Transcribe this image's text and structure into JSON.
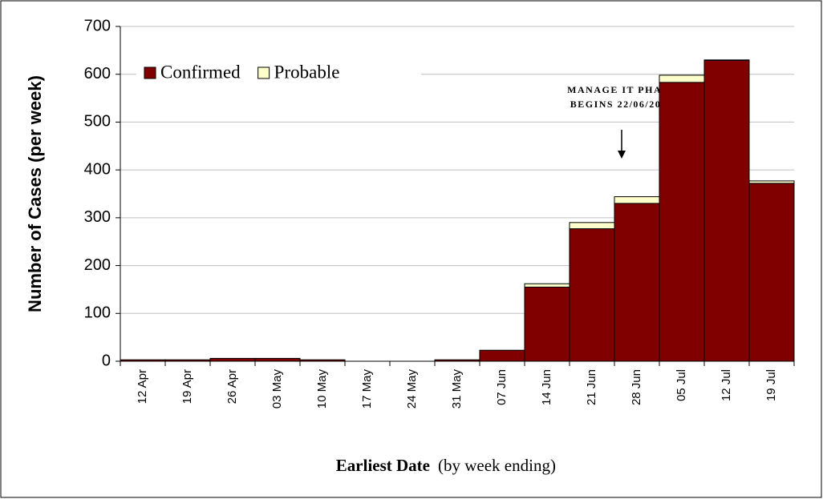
{
  "chart_data": {
    "type": "stacked_bar",
    "ylabel": "Number of Cases (per week)",
    "xlabel": "Earliest Date",
    "xlabel_note": "(by week ending)",
    "annotation": [
      "MANAGE IT PHASE",
      "BEGINS 22/06/2009"
    ],
    "categories": [
      "12 Apr",
      "19 Apr",
      "26 Apr",
      "03 May",
      "10 May",
      "17 May",
      "24 May",
      "31 May",
      "07 Jun",
      "14 Jun",
      "21 Jun",
      "28 Jun",
      "05 Jul",
      "12 Jul",
      "19 Jul"
    ],
    "series": [
      {
        "name": "Confirmed",
        "color": "#800000",
        "values": [
          3,
          3,
          6,
          6,
          3,
          0,
          0,
          3,
          23,
          155,
          277,
          330,
          583,
          629,
          372
        ]
      },
      {
        "name": "Probable",
        "color": "#ffffcc",
        "values": [
          0,
          0,
          0,
          0,
          0,
          0,
          0,
          0,
          0,
          7,
          13,
          14,
          15,
          1,
          5
        ]
      }
    ],
    "ylim": [
      0,
      700
    ],
    "yticks": [
      0,
      100,
      200,
      300,
      400,
      500,
      600,
      700
    ],
    "grid": true,
    "legend": "upper left"
  }
}
